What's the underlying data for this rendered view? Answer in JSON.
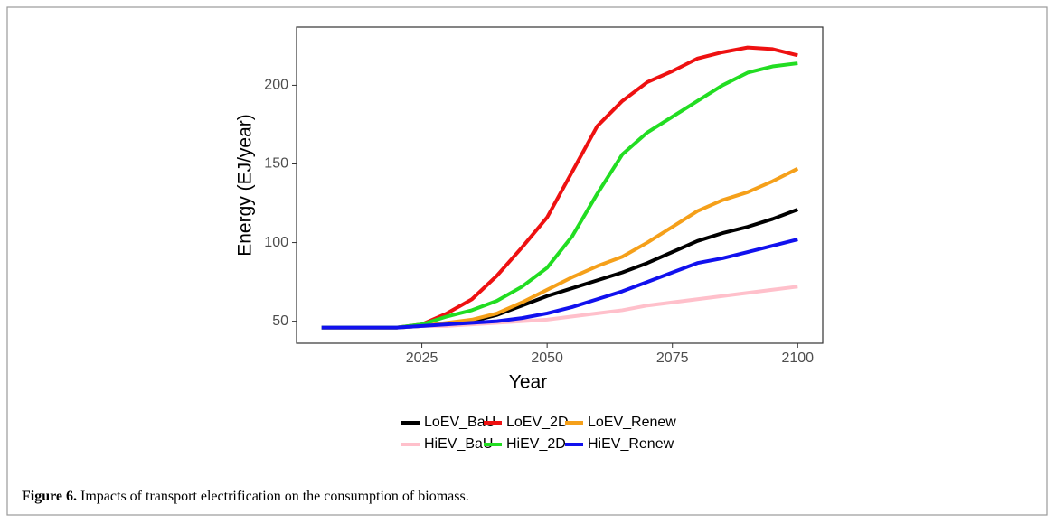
{
  "chart_data": {
    "type": "line",
    "x_label": "Year",
    "y_label": "Energy (EJ/year)",
    "x": [
      2005,
      2010,
      2015,
      2020,
      2025,
      2030,
      2035,
      2040,
      2045,
      2050,
      2055,
      2060,
      2065,
      2070,
      2075,
      2080,
      2085,
      2090,
      2095,
      2100
    ],
    "series": [
      {
        "name": "LoEV_BaU",
        "color": "#000000",
        "values": [
          46,
          46,
          46,
          46,
          47,
          48,
          50,
          54,
          60,
          66,
          71,
          76,
          81,
          87,
          94,
          101,
          106,
          110,
          115,
          121
        ]
      },
      {
        "name": "LoEV_2D",
        "color": "#ee1111",
        "values": [
          46,
          46,
          46,
          46,
          48,
          55,
          64,
          79,
          97,
          116,
          145,
          174,
          190,
          202,
          209,
          217,
          221,
          224,
          223,
          219
        ]
      },
      {
        "name": "LoEV_Renew",
        "color": "#f5a01a",
        "values": [
          46,
          46,
          46,
          46,
          47,
          49,
          51,
          55,
          62,
          70,
          78,
          85,
          91,
          100,
          110,
          120,
          127,
          132,
          139,
          147
        ]
      },
      {
        "name": "HiEV_BaU",
        "color": "#ffc0cb",
        "values": [
          46,
          46,
          46,
          46,
          47,
          47,
          48,
          49,
          50,
          51,
          53,
          55,
          57,
          60,
          62,
          64,
          66,
          68,
          70,
          72
        ]
      },
      {
        "name": "HiEV_2D",
        "color": "#22dd22",
        "values": [
          46,
          46,
          46,
          46,
          48,
          53,
          57,
          63,
          72,
          84,
          104,
          131,
          156,
          170,
          180,
          190,
          200,
          208,
          212,
          214
        ]
      },
      {
        "name": "HiEV_Renew",
        "color": "#1111ee",
        "values": [
          46,
          46,
          46,
          46,
          47,
          48,
          49,
          50,
          52,
          55,
          59,
          64,
          69,
          75,
          81,
          87,
          90,
          94,
          98,
          102
        ]
      }
    ],
    "xlim": [
      2000,
      2105
    ],
    "ylim": [
      36,
      237
    ],
    "xticks": [
      2025,
      2050,
      2075,
      2100
    ],
    "yticks": [
      50,
      100,
      150,
      200
    ],
    "grid": false,
    "legend": "bottom"
  },
  "figure": {
    "label": "Figure 6.",
    "caption": "Impacts of transport electrification on the consumption of biomass."
  }
}
